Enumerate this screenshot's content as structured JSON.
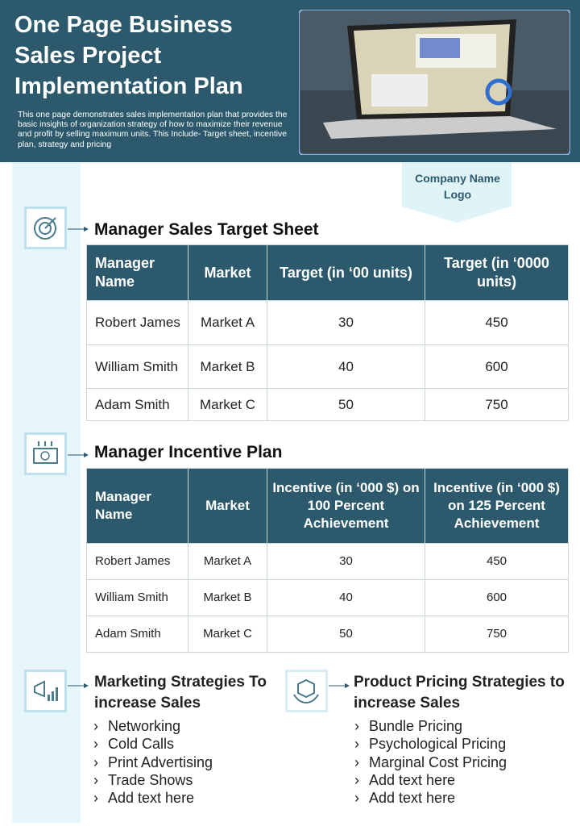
{
  "header": {
    "title": "One Page Business Sales Project Implementation Plan",
    "description": "This one page demonstrates sales implementation plan that provides the basic insights of organization strategy of how to maximize their revenue and profit by selling maximum units. This Include- Target sheet, incentive plan, strategy and pricing"
  },
  "logo": "Company Name Logo",
  "target_sheet": {
    "title": "Manager Sales Target Sheet",
    "columns": [
      "Manager Name",
      "Market",
      "Target (in ‘00 units)",
      "Target (in ‘0000 units)"
    ],
    "rows": [
      [
        "Robert James",
        "Market A",
        "30",
        "450"
      ],
      [
        "William Smith",
        "Market B",
        "40",
        "600"
      ],
      [
        "Adam Smith",
        "Market C",
        "50",
        "750"
      ]
    ]
  },
  "incentive_plan": {
    "title": "Manager Incentive Plan",
    "columns": [
      "Manager Name",
      "Market",
      "Incentive (in ‘000 $) on 100 Percent Achievement",
      "Incentive (in ‘000 $) on 125 Percent Achievement"
    ],
    "rows": [
      [
        "Robert James",
        "Market A",
        "30",
        "450"
      ],
      [
        "William Smith",
        "Market B",
        "40",
        "600"
      ],
      [
        "Adam Smith",
        "Market C",
        "50",
        "750"
      ]
    ]
  },
  "marketing": {
    "title": "Marketing Strategies To increase Sales",
    "items": [
      "Networking",
      "Cold Calls",
      "Print Advertising",
      "Trade Shows",
      "Add text here"
    ]
  },
  "pricing": {
    "title": "Product Pricing Strategies to increase Sales",
    "items": [
      "Bundle Pricing",
      "Psychological Pricing",
      "Marginal Cost Pricing",
      "Add text here",
      "Add text here"
    ]
  }
}
